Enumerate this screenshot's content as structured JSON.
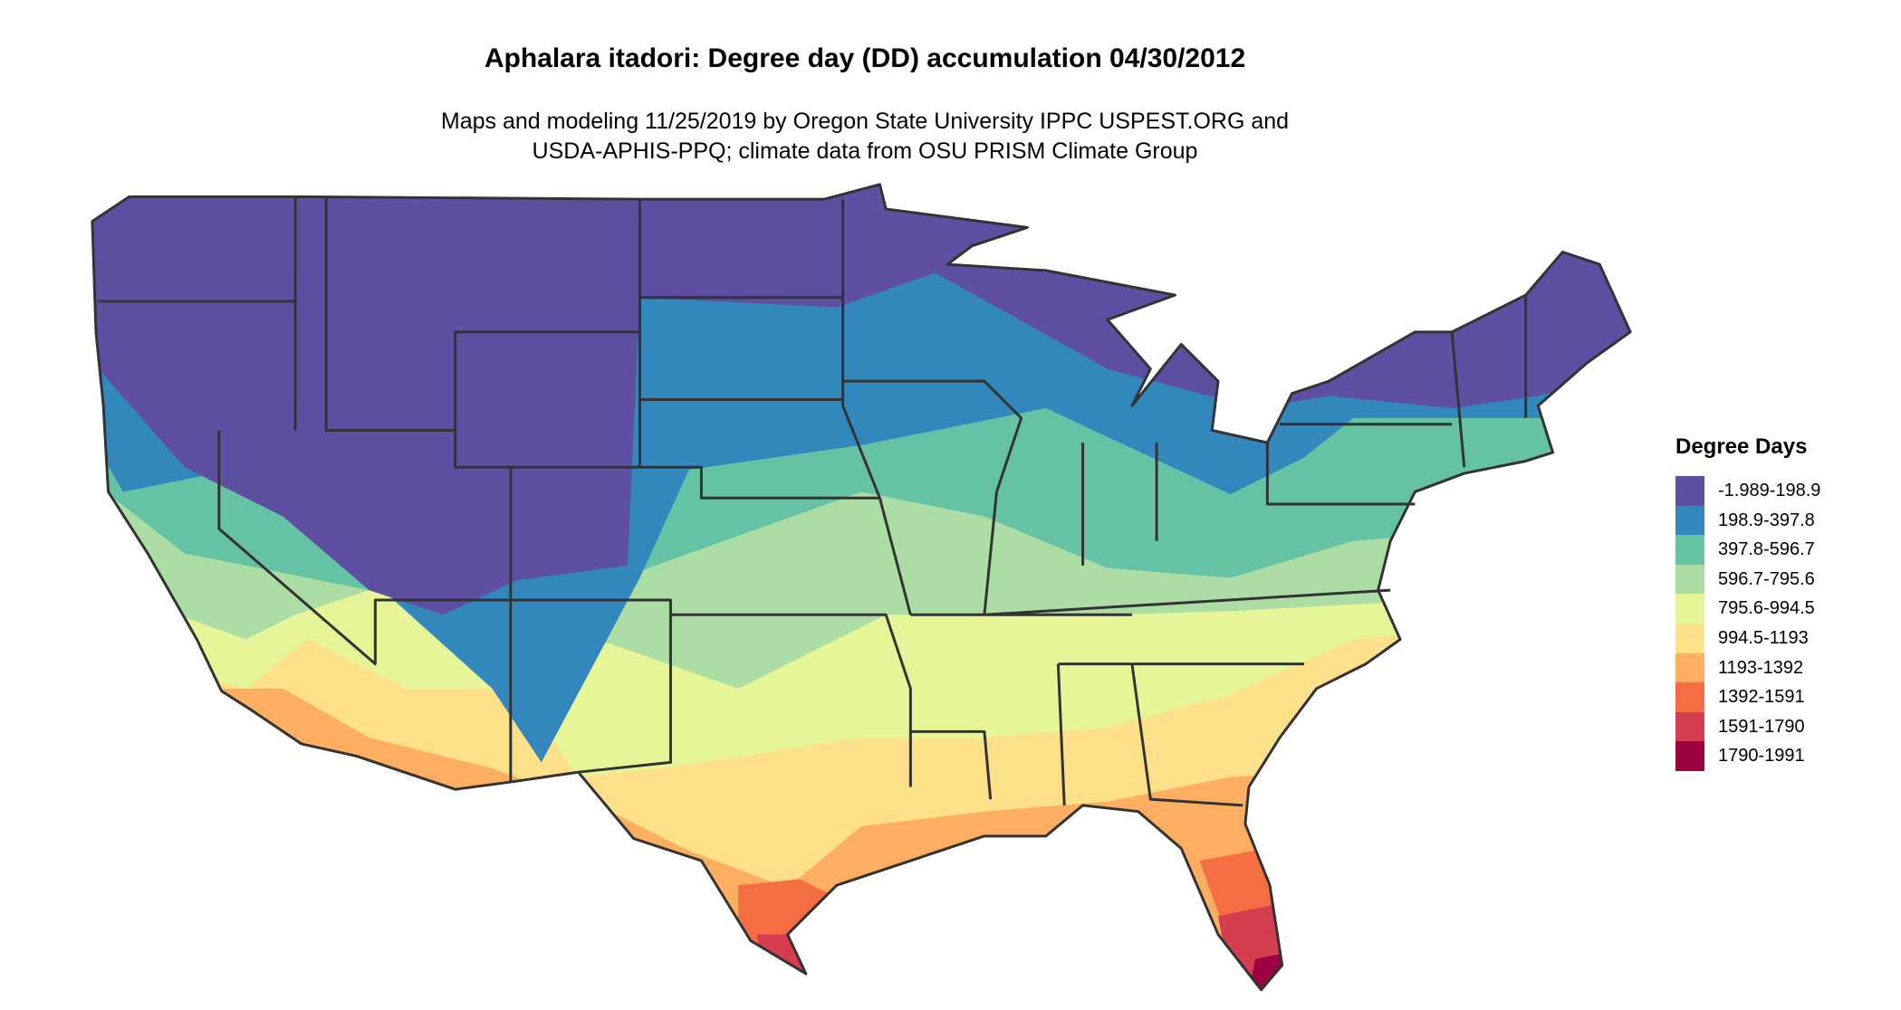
{
  "title": "Aphalara itadori: Degree day (DD) accumulation 04/30/2012",
  "subtitle_lines": [
    "Maps and modeling 11/25/2019 by Oregon State University IPPC USPEST.ORG and",
    "USDA-APHIS-PPQ; climate data from OSU PRISM Climate Group"
  ],
  "legend": {
    "title": "Degree Days",
    "items": [
      {
        "label": "-1.989-198.9",
        "color": "#5e4fa2"
      },
      {
        "label": "198.9-397.8",
        "color": "#3288bd"
      },
      {
        "label": "397.8-596.7",
        "color": "#66c2a5"
      },
      {
        "label": "596.7-795.6",
        "color": "#abdda4"
      },
      {
        "label": "795.6-994.5",
        "color": "#e6f598"
      },
      {
        "label": "994.5-1193",
        "color": "#fee08b"
      },
      {
        "label": "1193-1392",
        "color": "#fdae61"
      },
      {
        "label": "1392-1591",
        "color": "#f46d43"
      },
      {
        "label": "1591-1790",
        "color": "#d53e4f"
      },
      {
        "label": "1790-1991",
        "color": "#9e0142"
      }
    ]
  },
  "border_color": "#333333"
}
